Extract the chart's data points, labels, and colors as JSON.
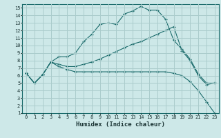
{
  "xlabel": "Humidex (Indice chaleur)",
  "bg_color": "#cde8e8",
  "grid_color": "#aacccc",
  "line_color": "#1a6b6b",
  "xlim": [
    -0.5,
    23.5
  ],
  "ylim": [
    1,
    15.5
  ],
  "xticks": [
    0,
    1,
    2,
    3,
    4,
    5,
    6,
    7,
    8,
    9,
    10,
    11,
    12,
    13,
    14,
    15,
    16,
    17,
    18,
    19,
    20,
    21,
    22,
    23
  ],
  "yticks": [
    1,
    2,
    3,
    4,
    5,
    6,
    7,
    8,
    9,
    10,
    11,
    12,
    13,
    14,
    15
  ],
  "line1_x": [
    0,
    1,
    2,
    3,
    4,
    5,
    6,
    7,
    8,
    9,
    10,
    11,
    12,
    13,
    14,
    15,
    16,
    17,
    18,
    19,
    20,
    21,
    22,
    23
  ],
  "line1_y": [
    6.3,
    5.0,
    6.1,
    7.8,
    8.5,
    8.5,
    9.0,
    10.5,
    11.5,
    12.8,
    13.0,
    12.8,
    14.2,
    14.6,
    15.2,
    14.7,
    14.7,
    13.5,
    10.7,
    9.5,
    8.2,
    6.2,
    5.0,
    5.0
  ],
  "line2_x": [
    0,
    1,
    2,
    3,
    4,
    5,
    6,
    7,
    8,
    9,
    10,
    11,
    12,
    13,
    14,
    15,
    16,
    17,
    18,
    19,
    20,
    21,
    22,
    23
  ],
  "line2_y": [
    6.3,
    5.0,
    6.1,
    7.8,
    7.5,
    7.2,
    7.2,
    7.5,
    7.8,
    8.2,
    8.7,
    9.2,
    9.7,
    10.2,
    10.5,
    11.0,
    11.5,
    12.0,
    12.5,
    9.3,
    8.0,
    6.0,
    4.8,
    5.0
  ],
  "line3_x": [
    0,
    1,
    2,
    3,
    4,
    5,
    6,
    7,
    8,
    9,
    10,
    11,
    12,
    13,
    14,
    15,
    16,
    17,
    18,
    19,
    20,
    21,
    22,
    23
  ],
  "line3_y": [
    6.3,
    5.0,
    6.1,
    7.8,
    7.2,
    6.8,
    6.5,
    6.5,
    6.5,
    6.5,
    6.5,
    6.5,
    6.5,
    6.5,
    6.5,
    6.5,
    6.5,
    6.5,
    6.3,
    6.0,
    5.2,
    4.0,
    2.5,
    1.0
  ],
  "tick_fontsize": 5.0,
  "xlabel_fontsize": 6.5
}
